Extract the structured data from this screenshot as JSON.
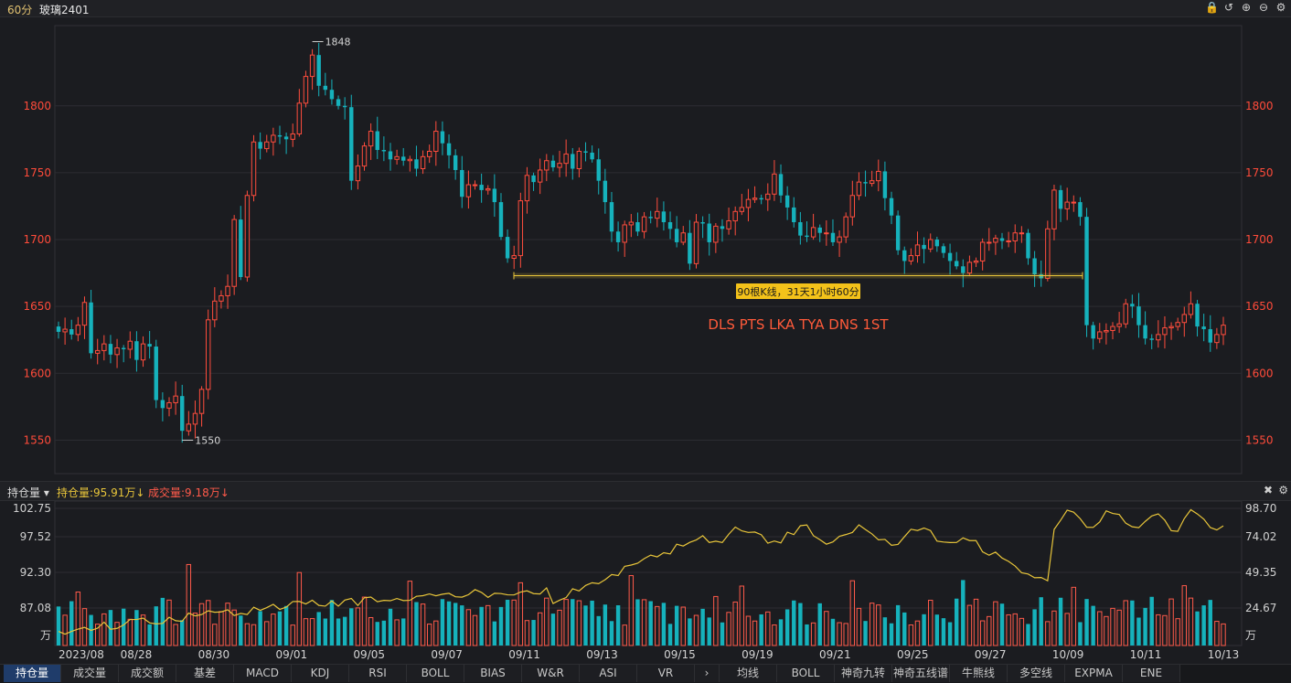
{
  "header": {
    "period": "60分",
    "symbol": "玻璃2401",
    "icons": [
      "lock-icon",
      "undo-icon",
      "zoom-in-icon",
      "zoom-out-icon",
      "gear-icon"
    ]
  },
  "chart_data": {
    "type": "candlestick",
    "title": "玻璃2401",
    "price_axis": {
      "ylim": [
        1525,
        1860
      ],
      "ticks": [
        "1800",
        "1750",
        "1700",
        "1650",
        "1600",
        "1550"
      ]
    },
    "x_tick_labels": [
      "2023/08",
      "08/28",
      "08/30",
      "09/01",
      "09/05",
      "09/07",
      "09/11",
      "09/13",
      "09/15",
      "09/19",
      "09/21",
      "09/25",
      "09/27",
      "10/09",
      "10/11",
      "10/13"
    ],
    "high_label": "1848",
    "low_label": "1550",
    "annotation_box": "90根K线，31天1小时60分",
    "annotation_text": "DLS PTS LKA TYA DNS 1ST",
    "close_series": [
      1631,
      1633,
      1629,
      1636,
      1653,
      1615,
      1617,
      1622,
      1614,
      1619,
      1618,
      1624,
      1610,
      1622,
      1620,
      1580,
      1574,
      1578,
      1583,
      1557,
      1562,
      1570,
      1588,
      1640,
      1654,
      1658,
      1665,
      1715,
      1672,
      1733,
      1773,
      1768,
      1773,
      1778,
      1777,
      1775,
      1779,
      1802,
      1822,
      1838,
      1815,
      1812,
      1805,
      1800,
      1799,
      1744,
      1755,
      1770,
      1781,
      1767,
      1766,
      1760,
      1762,
      1759,
      1760,
      1753,
      1762,
      1766,
      1781,
      1772,
      1763,
      1752,
      1732,
      1741,
      1741,
      1737,
      1738,
      1728,
      1702,
      1686,
      1688,
      1729,
      1748,
      1743,
      1752,
      1759,
      1754,
      1757,
      1764,
      1753,
      1766,
      1765,
      1760,
      1744,
      1728,
      1706,
      1698,
      1711,
      1713,
      1706,
      1717,
      1716,
      1721,
      1713,
      1708,
      1698,
      1705,
      1682,
      1713,
      1712,
      1698,
      1710,
      1708,
      1714,
      1721,
      1724,
      1730,
      1731,
      1730,
      1734,
      1749,
      1733,
      1724,
      1713,
      1703,
      1702,
      1709,
      1705,
      1705,
      1698,
      1702,
      1717,
      1733,
      1743,
      1742,
      1744,
      1751,
      1731,
      1718,
      1692,
      1684,
      1688,
      1696,
      1693,
      1700,
      1695,
      1690,
      1684,
      1680,
      1675,
      1683,
      1684,
      1698,
      1698,
      1701,
      1699,
      1699,
      1705,
      1705,
      1686,
      1674,
      1671,
      1708,
      1737,
      1723,
      1728,
      1728,
      1717,
      1636,
      1626,
      1631,
      1632,
      1635,
      1637,
      1652,
      1650,
      1636,
      1626,
      1625,
      1629,
      1634,
      1635,
      1638,
      1644,
      1652,
      1635,
      1633,
      1623,
      1629,
      1636
    ],
    "levels": {
      "support_line": 1673
    },
    "lower_panel": {
      "left_axis_ticks": [
        "102.75",
        "97.52",
        "92.30",
        "87.08",
        "万"
      ],
      "right_axis_ticks": [
        "98.70",
        "74.02",
        "49.35",
        "24.67",
        "万"
      ],
      "open_interest_label": "持仓量:95.91万",
      "volume_label": "成交量:9.18万",
      "open_interest_color": "#e8c53a",
      "volume_up_color": "#ff5a4a",
      "volume_down_color": "#16b2bc"
    },
    "colors": {
      "up": "#ff4d3d",
      "down": "#16b2bc",
      "axis_text": "#ff4b3a",
      "grid": "#2c2d32",
      "line": "#e8c53a"
    }
  },
  "subbar": {
    "selector": "持仓量 ▾",
    "oi_label": "持仓量:95.91万↓",
    "vol_label": "成交量:9.18万↓"
  },
  "tabs": [
    "持仓量",
    "成交量",
    "成交额",
    "基差",
    "MACD",
    "KDJ",
    "RSI",
    "BOLL",
    "BIAS",
    "W&R",
    "ASI",
    "VR",
    "›",
    "均线",
    "BOLL",
    "神奇九转",
    "神奇五线谱",
    "牛熊线",
    "多空线",
    "EXPMA",
    "ENE"
  ]
}
